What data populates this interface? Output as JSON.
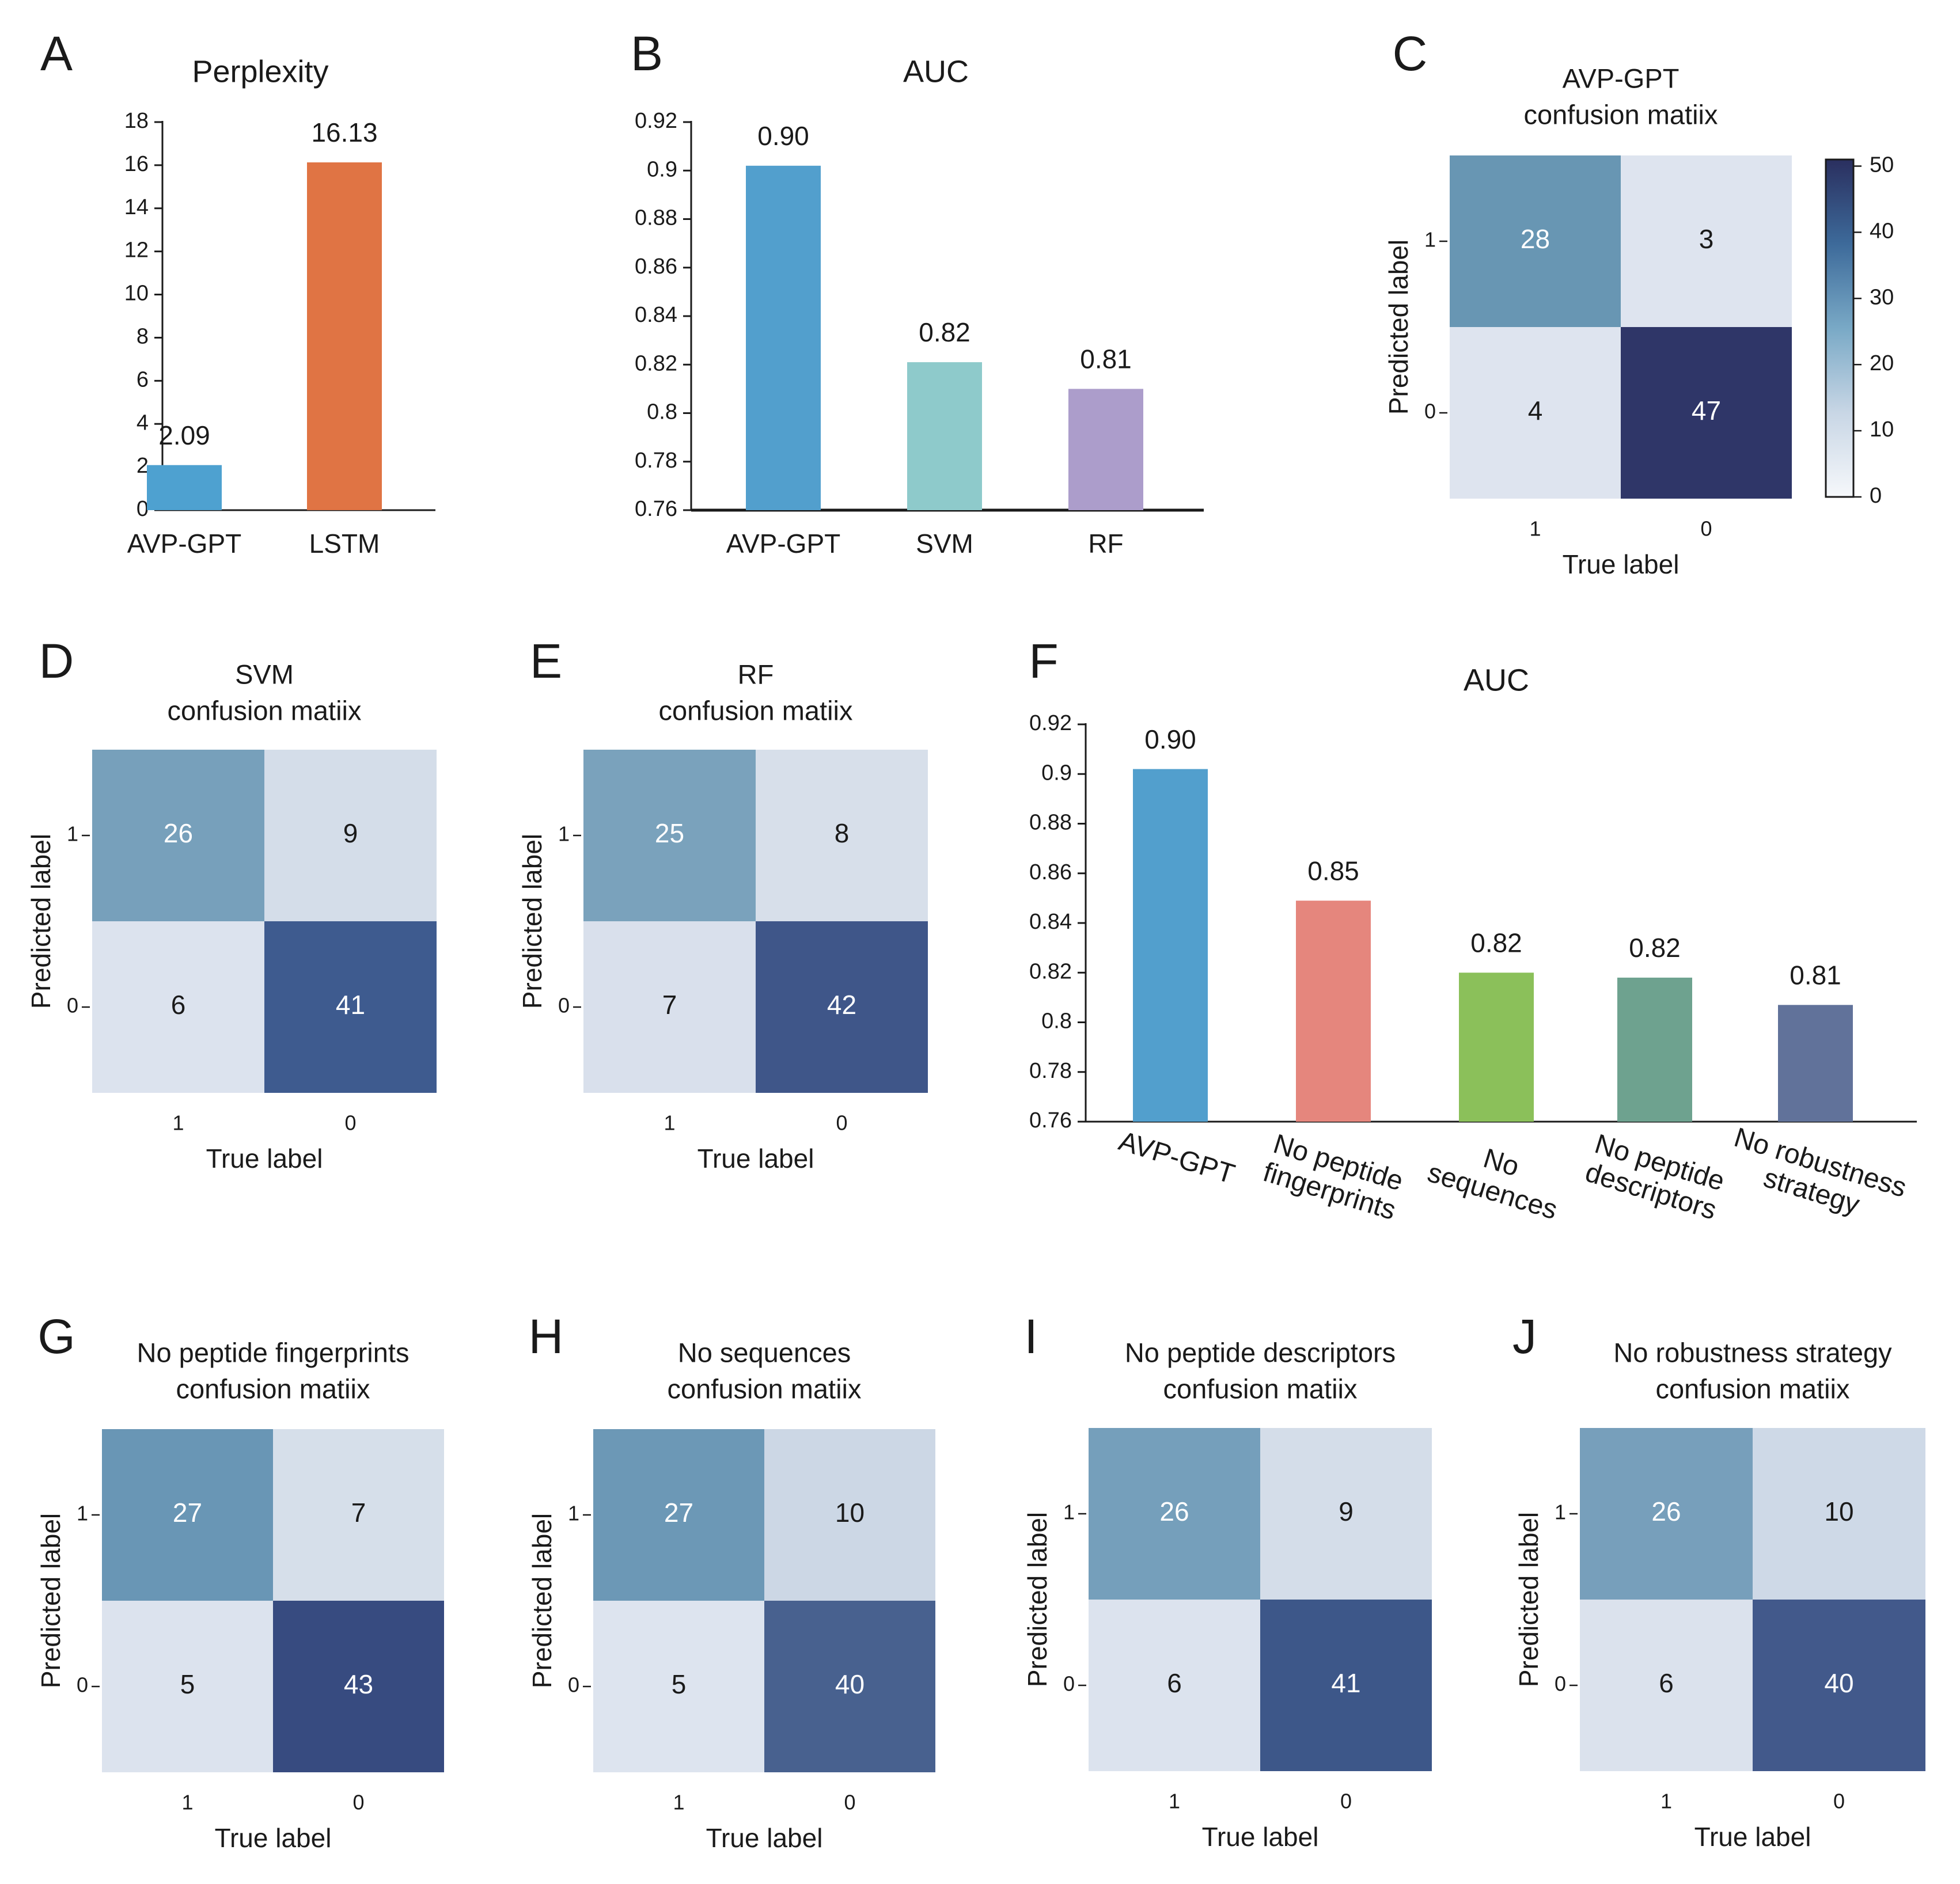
{
  "chart_data": [
    {
      "panel": "A",
      "type": "bar",
      "title": "Perplexity",
      "categories": [
        "AVP-GPT",
        "LSTM"
      ],
      "values": [
        2.09,
        16.13
      ],
      "value_labels": [
        "2.09",
        "16.13"
      ],
      "colors": [
        "#4ea1d0",
        "#e07444"
      ],
      "ylim": [
        0,
        18
      ],
      "yticks": [
        0,
        2,
        4,
        6,
        8,
        10,
        12,
        14,
        16,
        18
      ],
      "ytick_labels": [
        "0",
        "2",
        "4",
        "6",
        "8",
        "10",
        "12",
        "14",
        "16",
        "18"
      ],
      "xlabel": "",
      "ylabel": ""
    },
    {
      "panel": "B",
      "type": "bar",
      "title": "AUC",
      "categories": [
        "AVP-GPT",
        "SVM",
        "RF"
      ],
      "values": [
        0.902,
        0.821,
        0.81
      ],
      "value_labels": [
        "0.90",
        "0.82",
        "0.81"
      ],
      "colors": [
        "#529fcd",
        "#8ecacb",
        "#ac9dcb"
      ],
      "ylim": [
        0.76,
        0.92
      ],
      "yticks": [
        0.76,
        0.78,
        0.8,
        0.82,
        0.84,
        0.86,
        0.88,
        0.9,
        0.92
      ],
      "ytick_labels": [
        "0.76",
        "0.78",
        "0.8",
        "0.82",
        "0.84",
        "0.86",
        "0.88",
        "0.9",
        "0.92"
      ],
      "xlabel": "",
      "ylabel": ""
    },
    {
      "panel": "C",
      "type": "heatmap",
      "title_lines": [
        "AVP-GPT",
        "confusion matiix"
      ],
      "matrix": [
        [
          28,
          3
        ],
        [
          4,
          47
        ]
      ],
      "value_labels": [
        [
          "28",
          "3"
        ],
        [
          "4",
          "47"
        ]
      ],
      "x_tick_labels": [
        "1",
        "0"
      ],
      "y_tick_labels": [
        "1",
        "0"
      ],
      "xlabel": "True label",
      "ylabel": "Predicted label",
      "colorbar": {
        "min": 0,
        "max": 51,
        "ticks": [
          0,
          10,
          20,
          30,
          40,
          50
        ],
        "tick_labels": [
          "0",
          "10",
          "20",
          "30",
          "40",
          "50"
        ]
      },
      "cell_colors": [
        [
          "#6896b3",
          "#dee4ef"
        ],
        [
          "#dee4ef",
          "#2f3668"
        ]
      ]
    },
    {
      "panel": "D",
      "type": "heatmap",
      "title_lines": [
        "SVM",
        "confusion matiix"
      ],
      "matrix": [
        [
          26,
          9
        ],
        [
          6,
          41
        ]
      ],
      "value_labels": [
        [
          "26",
          "9"
        ],
        [
          "6",
          "41"
        ]
      ],
      "x_tick_labels": [
        "1",
        "0"
      ],
      "y_tick_labels": [
        "1",
        "0"
      ],
      "xlabel": "True label",
      "ylabel": "Predicted label",
      "cell_colors": [
        [
          "#77a0bb",
          "#d4dde9"
        ],
        [
          "#dce3ee",
          "#3e5b8f"
        ]
      ]
    },
    {
      "panel": "E",
      "type": "heatmap",
      "title_lines": [
        "RF",
        "confusion matiix"
      ],
      "matrix": [
        [
          25,
          8
        ],
        [
          7,
          42
        ]
      ],
      "value_labels": [
        [
          "25",
          "8"
        ],
        [
          "7",
          "42"
        ]
      ],
      "x_tick_labels": [
        "1",
        "0"
      ],
      "y_tick_labels": [
        "1",
        "0"
      ],
      "xlabel": "True label",
      "ylabel": "Predicted label",
      "cell_colors": [
        [
          "#7aa2bc",
          "#d7dfea"
        ],
        [
          "#d9e0ec",
          "#3f5689"
        ]
      ]
    },
    {
      "panel": "F",
      "type": "bar",
      "title": "AUC",
      "categories": [
        "AVP-GPT",
        "No peptide fingerprints",
        "No sequences",
        "No peptide descriptors",
        "No robustness strategy"
      ],
      "category_lines": [
        [
          "AVP-GPT"
        ],
        [
          "No peptide",
          "fingerprints"
        ],
        [
          "No",
          "sequences"
        ],
        [
          "No peptide",
          "descriptors"
        ],
        [
          "No robustness",
          "strategy"
        ]
      ],
      "values": [
        0.902,
        0.849,
        0.82,
        0.818,
        0.807
      ],
      "value_labels": [
        "0.90",
        "0.85",
        "0.82",
        "0.82",
        "0.81"
      ],
      "colors": [
        "#529fcd",
        "#e5867d",
        "#8bc05a",
        "#6ea28f",
        "#61729a"
      ],
      "ylim": [
        0.76,
        0.92
      ],
      "yticks": [
        0.76,
        0.78,
        0.8,
        0.82,
        0.84,
        0.86,
        0.88,
        0.9,
        0.92
      ],
      "ytick_labels": [
        "0.76",
        "0.78",
        "0.8",
        "0.82",
        "0.84",
        "0.86",
        "0.88",
        "0.9",
        "0.92"
      ],
      "xlabel": "",
      "ylabel": ""
    },
    {
      "panel": "G",
      "type": "heatmap",
      "title_lines": [
        "No peptide fingerprints",
        "confusion matiix"
      ],
      "matrix": [
        [
          27,
          7
        ],
        [
          5,
          43
        ]
      ],
      "value_labels": [
        [
          "27",
          "7"
        ],
        [
          "5",
          "43"
        ]
      ],
      "x_tick_labels": [
        "1",
        "0"
      ],
      "y_tick_labels": [
        "1",
        "0"
      ],
      "xlabel": "True label",
      "ylabel": "Predicted label",
      "cell_colors": [
        [
          "#6996b5",
          "#d6dfea"
        ],
        [
          "#dce3ee",
          "#374b80"
        ]
      ]
    },
    {
      "panel": "H",
      "type": "heatmap",
      "title_lines": [
        "No sequences",
        "confusion matiix"
      ],
      "matrix": [
        [
          27,
          10
        ],
        [
          5,
          40
        ]
      ],
      "value_labels": [
        [
          "27",
          "10"
        ],
        [
          "5",
          "40"
        ]
      ],
      "x_tick_labels": [
        "1",
        "0"
      ],
      "y_tick_labels": [
        "1",
        "0"
      ],
      "xlabel": "True label",
      "ylabel": "Predicted label",
      "cell_colors": [
        [
          "#6c98b6",
          "#ccd7e5"
        ],
        [
          "#dde4ef",
          "#48618f"
        ]
      ]
    },
    {
      "panel": "I",
      "type": "heatmap",
      "title_lines": [
        "No peptide descriptors",
        "confusion matiix"
      ],
      "matrix": [
        [
          26,
          9
        ],
        [
          6,
          41
        ]
      ],
      "value_labels": [
        [
          "26",
          "9"
        ],
        [
          "6",
          "41"
        ]
      ],
      "x_tick_labels": [
        "1",
        "0"
      ],
      "y_tick_labels": [
        "1",
        "0"
      ],
      "xlabel": "True label",
      "ylabel": "Predicted label",
      "cell_colors": [
        [
          "#759fbb",
          "#d4dde9"
        ],
        [
          "#dce3ee",
          "#3d5789"
        ]
      ]
    },
    {
      "panel": "J",
      "type": "heatmap",
      "title_lines": [
        "No robustness strategy",
        "confusion matiix"
      ],
      "matrix": [
        [
          26,
          10
        ],
        [
          6,
          40
        ]
      ],
      "value_labels": [
        [
          "26",
          "10"
        ],
        [
          "6",
          "40"
        ]
      ],
      "x_tick_labels": [
        "1",
        "0"
      ],
      "y_tick_labels": [
        "1",
        "0"
      ],
      "xlabel": "True label",
      "ylabel": "Predicted label",
      "cell_colors": [
        [
          "#779fbb",
          "#ced9e7"
        ],
        [
          "#dbe2ed",
          "#42598b"
        ]
      ]
    }
  ]
}
